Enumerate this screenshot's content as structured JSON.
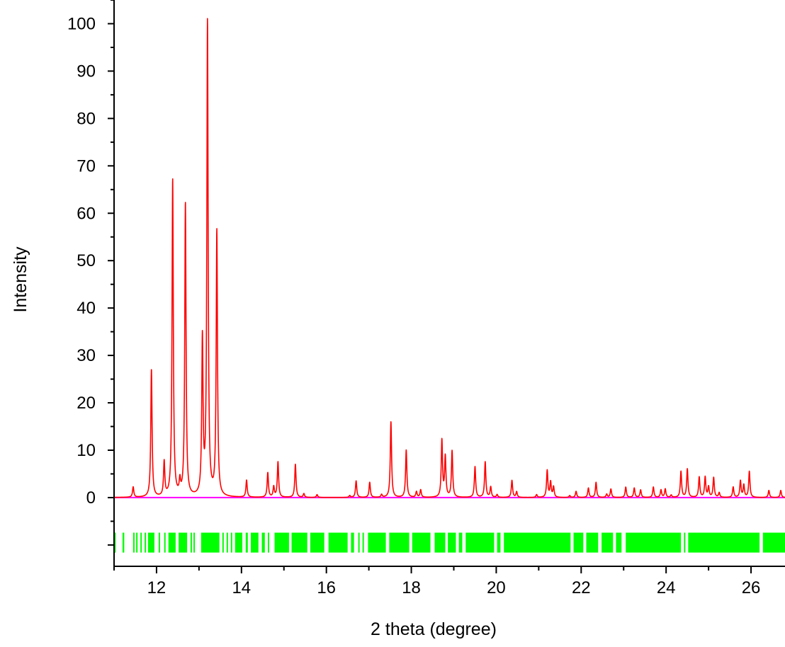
{
  "chart_data": {
    "type": "line",
    "title": "",
    "xlabel": "2 theta (degree)",
    "ylabel": "Intensity",
    "xlim": [
      11.0,
      26.8
    ],
    "ylim": [
      -14.5,
      105
    ],
    "x_ticks": [
      12,
      14,
      16,
      18,
      20,
      22,
      24,
      26
    ],
    "y_ticks": [
      0,
      10,
      20,
      30,
      40,
      50,
      60,
      70,
      80,
      90,
      100
    ],
    "grid": false,
    "legend": "none",
    "colors": {
      "pattern": "#ff0000",
      "baseline": "#ff00ff",
      "reflections": "#00ff00"
    },
    "peak_width": 0.018,
    "peaks": [
      {
        "x": 11.45,
        "y": 2.2
      },
      {
        "x": 11.88,
        "y": 27
      },
      {
        "x": 12.18,
        "y": 7.3
      },
      {
        "x": 12.38,
        "y": 67
      },
      {
        "x": 12.55,
        "y": 2.8
      },
      {
        "x": 12.68,
        "y": 62
      },
      {
        "x": 13.08,
        "y": 32.8
      },
      {
        "x": 13.2,
        "y": 100
      },
      {
        "x": 13.42,
        "y": 56
      },
      {
        "x": 14.12,
        "y": 3.6
      },
      {
        "x": 14.62,
        "y": 5.2
      },
      {
        "x": 14.76,
        "y": 2.2
      },
      {
        "x": 14.86,
        "y": 7.5
      },
      {
        "x": 15.27,
        "y": 7.0
      },
      {
        "x": 15.47,
        "y": 0.8
      },
      {
        "x": 15.78,
        "y": 0.6
      },
      {
        "x": 16.55,
        "y": 0.4
      },
      {
        "x": 16.7,
        "y": 3.5
      },
      {
        "x": 17.02,
        "y": 3.2
      },
      {
        "x": 17.3,
        "y": 0.6
      },
      {
        "x": 17.52,
        "y": 16
      },
      {
        "x": 17.88,
        "y": 10
      },
      {
        "x": 18.12,
        "y": 1.2
      },
      {
        "x": 18.22,
        "y": 1.6
      },
      {
        "x": 18.72,
        "y": 12
      },
      {
        "x": 18.8,
        "y": 8.5
      },
      {
        "x": 18.96,
        "y": 9.8
      },
      {
        "x": 19.5,
        "y": 6.5
      },
      {
        "x": 19.74,
        "y": 7.5
      },
      {
        "x": 19.87,
        "y": 2.2
      },
      {
        "x": 20.02,
        "y": 0.6
      },
      {
        "x": 20.37,
        "y": 3.6
      },
      {
        "x": 20.48,
        "y": 1.2
      },
      {
        "x": 20.95,
        "y": 0.6
      },
      {
        "x": 21.2,
        "y": 5.7
      },
      {
        "x": 21.28,
        "y": 3.2
      },
      {
        "x": 21.35,
        "y": 2.2
      },
      {
        "x": 21.73,
        "y": 0.4
      },
      {
        "x": 21.88,
        "y": 1.3
      },
      {
        "x": 22.17,
        "y": 2.0
      },
      {
        "x": 22.35,
        "y": 3.2
      },
      {
        "x": 22.6,
        "y": 0.7
      },
      {
        "x": 22.7,
        "y": 1.8
      },
      {
        "x": 23.05,
        "y": 2.2
      },
      {
        "x": 23.25,
        "y": 2.0
      },
      {
        "x": 23.4,
        "y": 1.6
      },
      {
        "x": 23.7,
        "y": 2.2
      },
      {
        "x": 23.88,
        "y": 1.6
      },
      {
        "x": 23.98,
        "y": 1.8
      },
      {
        "x": 24.12,
        "y": 0.5
      },
      {
        "x": 24.35,
        "y": 5.5
      },
      {
        "x": 24.5,
        "y": 6.0
      },
      {
        "x": 24.78,
        "y": 4.3
      },
      {
        "x": 24.92,
        "y": 4.3
      },
      {
        "x": 25.0,
        "y": 2.2
      },
      {
        "x": 25.12,
        "y": 4.2
      },
      {
        "x": 25.25,
        "y": 1.0
      },
      {
        "x": 25.58,
        "y": 2.2
      },
      {
        "x": 25.75,
        "y": 3.5
      },
      {
        "x": 25.83,
        "y": 2.6
      },
      {
        "x": 25.96,
        "y": 5.5
      },
      {
        "x": 26.42,
        "y": 1.5
      },
      {
        "x": 26.7,
        "y": 1.5
      }
    ],
    "reflection_level": -9.5,
    "reflection_tick_length": 4.2,
    "reflection_segments": [
      [
        11.0,
        11.04
      ],
      [
        11.2,
        11.24
      ],
      [
        11.45,
        11.47
      ],
      [
        11.52,
        11.55
      ],
      [
        11.62,
        11.65
      ],
      [
        11.72,
        11.74
      ],
      [
        11.8,
        11.95
      ],
      [
        12.05,
        12.07
      ],
      [
        12.18,
        12.2
      ],
      [
        12.28,
        12.45
      ],
      [
        12.52,
        12.72
      ],
      [
        12.8,
        12.82
      ],
      [
        12.87,
        12.9
      ],
      [
        13.05,
        13.48
      ],
      [
        13.55,
        13.58
      ],
      [
        13.65,
        13.68
      ],
      [
        13.75,
        13.77
      ],
      [
        13.85,
        14.02
      ],
      [
        14.1,
        14.15
      ],
      [
        14.22,
        14.4
      ],
      [
        14.48,
        14.55
      ],
      [
        14.62,
        14.65
      ],
      [
        14.78,
        15.12
      ],
      [
        15.18,
        15.55
      ],
      [
        15.62,
        15.95
      ],
      [
        16.05,
        16.5
      ],
      [
        16.58,
        16.65
      ],
      [
        16.75,
        16.78
      ],
      [
        16.85,
        16.88
      ],
      [
        16.98,
        17.4
      ],
      [
        17.48,
        17.95
      ],
      [
        18.02,
        18.45
      ],
      [
        18.55,
        18.8
      ],
      [
        18.86,
        19.05
      ],
      [
        19.12,
        19.2
      ],
      [
        19.28,
        19.95
      ],
      [
        20.02,
        20.1
      ],
      [
        20.18,
        21.75
      ],
      [
        21.82,
        22.05
      ],
      [
        22.12,
        22.4
      ],
      [
        22.48,
        22.75
      ],
      [
        22.82,
        22.95
      ],
      [
        23.05,
        24.35
      ],
      [
        24.42,
        24.45
      ],
      [
        24.52,
        26.2
      ],
      [
        26.28,
        26.8
      ]
    ]
  }
}
